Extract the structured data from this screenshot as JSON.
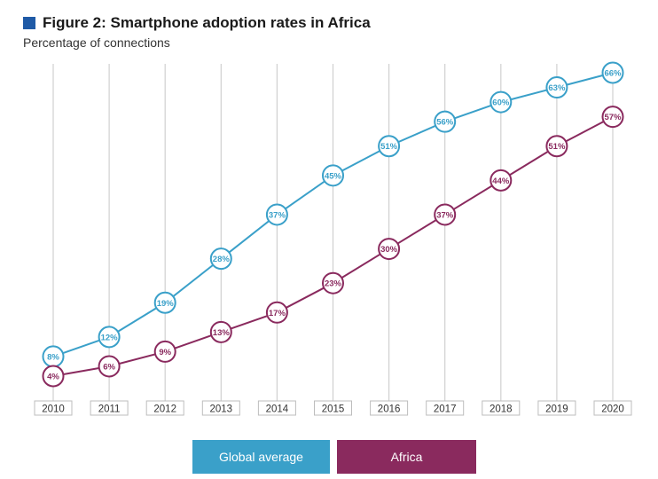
{
  "title": "Figure 2: Smartphone adoption rates in Africa",
  "subtitle": "Percentage of connections",
  "colors": {
    "global": "#3aa0c9",
    "africa": "#8a2a5e",
    "title_square": "#1f5aa6",
    "gridline": "#d0d0d0"
  },
  "legend": [
    {
      "label": "Global average",
      "color": "#3aa0c9"
    },
    {
      "label": "Africa",
      "color": "#8a2a5e"
    }
  ],
  "chart_data": {
    "type": "line",
    "categories": [
      "2010",
      "2011",
      "2012",
      "2013",
      "2014",
      "2015",
      "2016",
      "2017",
      "2018",
      "2019",
      "2020"
    ],
    "series": [
      {
        "name": "Global average",
        "values": [
          8,
          12,
          19,
          28,
          37,
          45,
          51,
          56,
          60,
          63,
          66
        ],
        "labels": [
          "8%",
          "12%",
          "19%",
          "28%",
          "37%",
          "45%",
          "51%",
          "56%",
          "60%",
          "63%",
          "66%"
        ]
      },
      {
        "name": "Africa",
        "values": [
          4,
          6,
          9,
          13,
          17,
          23,
          30,
          37,
          44,
          51,
          57
        ],
        "labels": [
          "4%",
          "6%",
          "9%",
          "13%",
          "17%",
          "23%",
          "30%",
          "37%",
          "44%",
          "51%",
          "57%"
        ]
      }
    ],
    "ylim": [
      4,
      66
    ],
    "grid": "vertical",
    "legend_position": "bottom"
  }
}
